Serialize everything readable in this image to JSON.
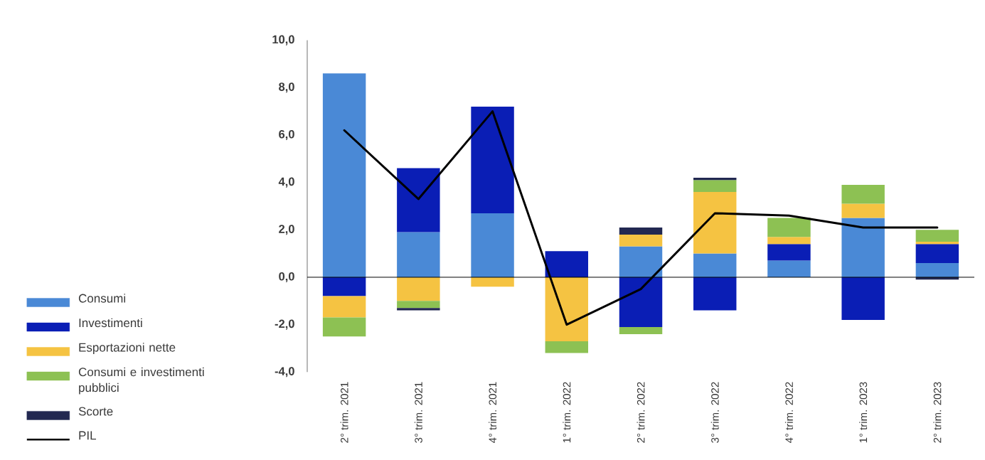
{
  "chart_data": {
    "type": "bar",
    "stacked": true,
    "categories": [
      "2° trim. 2021",
      "3° trim. 2021",
      "4° trim. 2021",
      "1° trim. 2022",
      "2° trim. 2022",
      "3° trim. 2022",
      "4° trim. 2022",
      "1° trim. 2023",
      "2° trim. 2023"
    ],
    "series": [
      {
        "name": "Consumi",
        "color": "#4a89d6",
        "values": [
          8.6,
          1.9,
          2.7,
          0,
          1.3,
          1.0,
          0.7,
          2.5,
          0.6
        ]
      },
      {
        "name": "Investimenti",
        "color": "#0a1eb5",
        "values": [
          -0.8,
          2.7,
          4.5,
          1.1,
          -2.1,
          -1.4,
          0.7,
          -1.8,
          0.8
        ]
      },
      {
        "name": "Esportazioni nette",
        "color": "#f5c342",
        "values": [
          -0.9,
          -1.0,
          -0.4,
          -2.7,
          0.5,
          2.6,
          0.3,
          0.6,
          0.1
        ]
      },
      {
        "name": "Consumi e investimenti pubblici",
        "color": "#8dc153",
        "values": [
          -0.8,
          -0.3,
          0,
          -0.5,
          -0.3,
          0.5,
          0.8,
          0.8,
          0.5
        ]
      },
      {
        "name": "Scorte",
        "color": "#222851",
        "values": [
          0,
          -0.1,
          0,
          0,
          0.3,
          0.1,
          0,
          0,
          -0.1
        ]
      },
      {
        "name": "PIL",
        "type": "line",
        "color": "#000000",
        "values": [
          6.2,
          3.3,
          7.0,
          -2.0,
          -0.5,
          2.7,
          2.6,
          2.1,
          2.1
        ]
      }
    ],
    "ylim": [
      -4,
      10
    ],
    "yticks": [
      {
        "value": -4,
        "label": "-4,0"
      },
      {
        "value": -2,
        "label": "-2,0"
      },
      {
        "value": 0,
        "label": "0,0"
      },
      {
        "value": 2,
        "label": "2,0"
      },
      {
        "value": 4,
        "label": "4,0"
      },
      {
        "value": 6,
        "label": "6,0"
      },
      {
        "value": 8,
        "label": "8,0"
      },
      {
        "value": 10,
        "label": "10,0"
      }
    ],
    "legend": "bottom left",
    "marker": "none"
  }
}
